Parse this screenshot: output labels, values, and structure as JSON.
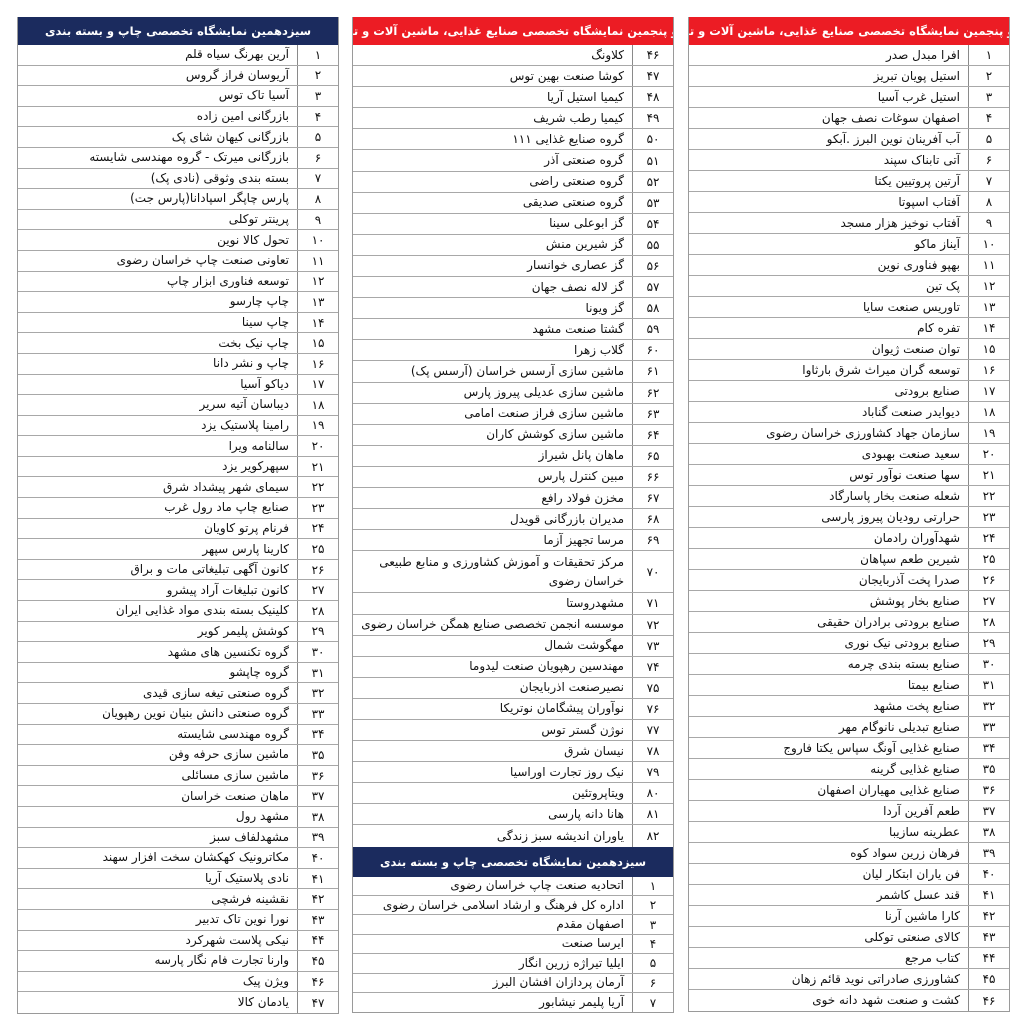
{
  "colors": {
    "food_header": "#ec1c24",
    "print_header": "#1b2b5e"
  },
  "food_title": "بیست و پنجمین نمایشگاه تخصصی صنایع غذایی، ماشین آلات و تجهیزات",
  "print_title": "سیزدهمین نمایشگاه تخصصی چاپ و بسته بندی",
  "food_part1": [
    [
      "۱",
      "افرا مبدل صدر"
    ],
    [
      "۲",
      "استیل پویان تبریز"
    ],
    [
      "۳",
      "استیل غرب آسیا"
    ],
    [
      "۴",
      "اصفهان سوغات نصف جهان"
    ],
    [
      "۵",
      "آب آفرینان نوین البرز .آبکو"
    ],
    [
      "۶",
      "آتی تابناک سپند"
    ],
    [
      "۷",
      "آرتین پروتیین یکتا"
    ],
    [
      "۸",
      "آفتاب اسپوتا"
    ],
    [
      "۹",
      "آفتاب نوخیز هزار مسجد"
    ],
    [
      "۱۰",
      "آیناز ماکو"
    ],
    [
      "۱۱",
      "بهپو فناوری نوین"
    ],
    [
      "۱۲",
      "پک تین"
    ],
    [
      "۱۳",
      "تاوریس صنعت سایا"
    ],
    [
      "۱۴",
      "تفره کام"
    ],
    [
      "۱۵",
      "توان صنعت ژیوان"
    ],
    [
      "۱۶",
      "توسعه گران میراث شرق بارثاوا"
    ],
    [
      "۱۷",
      "صنایع برودتی"
    ],
    [
      "۱۸",
      "دیوایدر صنعت گناباد"
    ],
    [
      "۱۹",
      "سازمان جهاد کشاورزی خراسان رضوی"
    ],
    [
      "۲۰",
      "سعید صنعت بهبودی"
    ],
    [
      "۲۱",
      "سها صنعت نوآور توس"
    ],
    [
      "۲۲",
      "شعله صنعت بخار پاسارگاد"
    ],
    [
      "۲۳",
      "حرارتی رودیان پیروز پارسی"
    ],
    [
      "۲۴",
      "شهدآوران رادمان"
    ],
    [
      "۲۵",
      "شیرین طعم سپاهان"
    ],
    [
      "۲۶",
      "صدرا پخت آذربایجان"
    ],
    [
      "۲۷",
      "صنایع بخار پوشش"
    ],
    [
      "۲۸",
      "صنایع برودتی برادران حقیقی"
    ],
    [
      "۲۹",
      "صنایع برودتی نیک نوری"
    ],
    [
      "۳۰",
      "صنایع بسته بندی چرمه"
    ],
    [
      "۳۱",
      "صنایع بیمتا"
    ],
    [
      "۳۲",
      "صنایع پخت مشهد"
    ],
    [
      "۳۳",
      "صنایع تبدیلی نانوگام مهر"
    ],
    [
      "۳۴",
      "صنایع غذایی آونگ سپاس یکتا فاروج"
    ],
    [
      "۳۵",
      "صنایع غذایی گرینه"
    ],
    [
      "۳۶",
      "صنایع غذایی مهیاران اصفهان"
    ],
    [
      "۳۷",
      "طعم آفرین آردا"
    ],
    [
      "۳۸",
      "عطرینه سازیبا"
    ],
    [
      "۳۹",
      "فرهان زرین سواد کوه"
    ],
    [
      "۴۰",
      "فن یاران ابتکار لیان"
    ],
    [
      "۴۱",
      "قند عسل کاشمر"
    ],
    [
      "۴۲",
      "کارا ماشین آرنا"
    ],
    [
      "۴۳",
      "کالای صنعتی توکلی"
    ],
    [
      "۴۴",
      "کتاب مرجع"
    ],
    [
      "۴۵",
      "کشاورزی  صادراتی نوید قائم زهان"
    ],
    [
      "۴۶",
      "کشت و صنعت شهد دانه خوی"
    ]
  ],
  "food_part2": [
    [
      "۴۶",
      "کلاونگ"
    ],
    [
      "۴۷",
      "کوشا صنعت بهین توس"
    ],
    [
      "۴۸",
      "کیمیا استیل آریا"
    ],
    [
      "۴۹",
      "کیمیا رطب شریف"
    ],
    [
      "۵۰",
      "گروه صنایع غذایی ۱۱۱"
    ],
    [
      "۵۱",
      "گروه صنعتی آذر"
    ],
    [
      "۵۲",
      "گروه صنعتی راضی"
    ],
    [
      "۵۳",
      "گروه صنعتی صدیقی"
    ],
    [
      "۵۴",
      "گز ابوعلی سینا"
    ],
    [
      "۵۵",
      "گز شیرین منش"
    ],
    [
      "۵۶",
      "گز عصاری خوانسار"
    ],
    [
      "۵۷",
      "گز لاله نصف جهان"
    ],
    [
      "۵۸",
      "گز ویونا"
    ],
    [
      "۵۹",
      "گشتا صنعت مشهد"
    ],
    [
      "۶۰",
      "گلاب زهرا"
    ],
    [
      "۶۱",
      "ماشین سازی آرسس خراسان (آرسس پک)"
    ],
    [
      "۶۲",
      "ماشین سازی عدیلی پیروز پارس"
    ],
    [
      "۶۳",
      "ماشین سازی فراز صنعت امامی"
    ],
    [
      "۶۴",
      "ماشین سازی کوشش کاران"
    ],
    [
      "۶۵",
      "ماهان پانل شیراز"
    ],
    [
      "۶۶",
      "مبین کنترل پارس"
    ],
    [
      "۶۷",
      "مخزن فولاد رافع"
    ],
    [
      "۶۸",
      "مدیران بازرگانی قویدل"
    ],
    [
      "۶۹",
      "مرسا تجهیز آزما"
    ],
    [
      "۷۰",
      "مرکز تحقیقات و آموزش کشاورزی و منابع طبیعی خراسان رضوی"
    ],
    [
      "۷۱",
      "مشهدروستا"
    ],
    [
      "۷۲",
      "موسسه انجمن تخصصی صنایع همگن خراسان رضوی"
    ],
    [
      "۷۳",
      "مهگوشت شمال"
    ],
    [
      "۷۴",
      "مهندسین رهپویان صنعت لیدوما"
    ],
    [
      "۷۵",
      "نصیرصنعت اذربایجان"
    ],
    [
      "۷۶",
      "نوآوران پیشگامان نوتریکا"
    ],
    [
      "۷۷",
      "نوژن گستر توس"
    ],
    [
      "۷۸",
      "نیسان شرق"
    ],
    [
      "۷۹",
      "نیک روز تجارت اوراسیا"
    ],
    [
      "۸۰",
      "ویتاپروتئین"
    ],
    [
      "۸۱",
      "هانا دانه پارسی"
    ],
    [
      "۸۲",
      "یاوران اندیشه سبز زندگی"
    ]
  ],
  "print_part1": [
    [
      "۱",
      "اتحادیه صنعت چاپ خراسان رضوی"
    ],
    [
      "۲",
      "اداره کل فرهنگ و ارشاد اسلامی خراسان رضوی"
    ],
    [
      "۳",
      "اصفهان مقدم"
    ],
    [
      "۴",
      "ایرسا صنعت"
    ],
    [
      "۵",
      "ایلیا تیراژه زرین انگار"
    ],
    [
      "۶",
      "آرمان پردازان افشان البرز"
    ],
    [
      "۷",
      "آریا پلیمر نیشابور"
    ]
  ],
  "print_part2": [
    [
      "۱",
      "آرین بهرنگ سیاه قلم"
    ],
    [
      "۲",
      "آریوسان فراز گروس"
    ],
    [
      "۳",
      "آسیا تاک توس"
    ],
    [
      "۴",
      "بازرگانی امین زاده"
    ],
    [
      "۵",
      "بازرگانی کیهان شای پک"
    ],
    [
      "۶",
      "بازرگانی میرتک - گروه مهندسی شایسته"
    ],
    [
      "۷",
      "بسته بندی وثوقی (نادی پک)"
    ],
    [
      "۸",
      "پارس چاپگر اسپادانا(پارس جت)"
    ],
    [
      "۹",
      "پرینتر توکلی"
    ],
    [
      "۱۰",
      "تحول کالا نوین"
    ],
    [
      "۱۱",
      "تعاونی صنعت چاپ خراسان رضوی"
    ],
    [
      "۱۲",
      "توسعه فناوری ابزار چاپ"
    ],
    [
      "۱۳",
      "چاپ چارسو"
    ],
    [
      "۱۴",
      "چاپ سینا"
    ],
    [
      "۱۵",
      "چاپ نیک بخت"
    ],
    [
      "۱۶",
      "چاپ و نشر دانا"
    ],
    [
      "۱۷",
      "دیاکو آسیا"
    ],
    [
      "۱۸",
      "دیباسان آتیه سریر"
    ],
    [
      "۱۹",
      "رامینا پلاستیک یزد"
    ],
    [
      "۲۰",
      "سالنامه ویرا"
    ],
    [
      "۲۱",
      "سپهرکویر یزد"
    ],
    [
      "۲۲",
      "سیمای شهر پیشداد شرق"
    ],
    [
      "۲۳",
      "صنایع چاپ ماد رول غرب"
    ],
    [
      "۲۴",
      "فرنام پرتو کاویان"
    ],
    [
      "۲۵",
      "کارینا پارس سپهر"
    ],
    [
      "۲۶",
      "کانون آگهی تبلیغاتی مات و براق"
    ],
    [
      "۲۷",
      "کانون تبلیغات آراد پیشرو"
    ],
    [
      "۲۸",
      "کلینیک بسته بندی مواد غذایی ایران"
    ],
    [
      "۲۹",
      "کوشش پلیمر کویر"
    ],
    [
      "۳۰",
      "گروه تکنسین های مشهد"
    ],
    [
      "۳۱",
      "گروه چاپشو"
    ],
    [
      "۳۲",
      "گروه صنعتی تیغه سازی قیدی"
    ],
    [
      "۳۳",
      "گروه صنعتی دانش بنیان نوین رهپویان"
    ],
    [
      "۳۴",
      "گروه مهندسی شایسته"
    ],
    [
      "۳۵",
      "ماشین سازی حرفه وفن"
    ],
    [
      "۳۶",
      "ماشین سازی مسائلی"
    ],
    [
      "۳۷",
      "ماهان صنعت خراسان"
    ],
    [
      "۳۸",
      "مشهد رول"
    ],
    [
      "۳۹",
      "مشهدلفاف سبز"
    ],
    [
      "۴۰",
      "مکاترونیک کهکشان سخت افزار سهند"
    ],
    [
      "۴۱",
      "نادی پلاستیک آریا"
    ],
    [
      "۴۲",
      "نقشینه فرشچی"
    ],
    [
      "۴۳",
      "نورا نوین تاک تدبیر"
    ],
    [
      "۴۴",
      "نیکی پلاست شهرکرد"
    ],
    [
      "۴۵",
      "وارنا تجارت فام نگار پارسه"
    ],
    [
      "۴۶",
      "ویژن پیک"
    ],
    [
      "۴۷",
      "یادمان کالا"
    ]
  ]
}
